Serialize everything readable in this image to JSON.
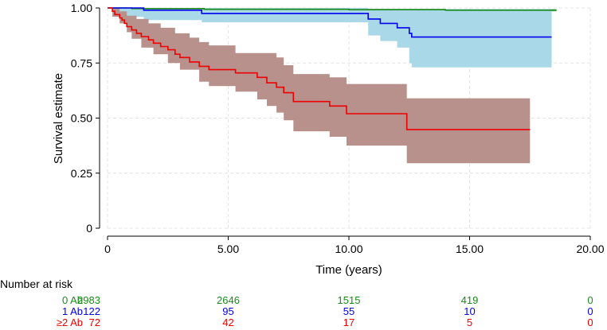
{
  "chart_data": {
    "type": "line",
    "title": "",
    "xlabel": "Time (years)",
    "ylabel": "Survival estimate",
    "xlim": [
      0,
      20
    ],
    "ylim": [
      0,
      1
    ],
    "x_ticks": [
      0,
      5,
      10,
      15,
      20
    ],
    "x_tick_labels": [
      "0",
      "5.00",
      "10.00",
      "15.00",
      "20.00"
    ],
    "y_ticks": [
      0,
      0.25,
      0.5,
      0.75,
      1
    ],
    "y_tick_labels": [
      "0",
      "0.25",
      "0.50",
      "0.75",
      "1.00"
    ],
    "grid": true,
    "series": [
      {
        "name": "0 Ab",
        "color": "#1a8a1a",
        "band_color": "#90c890",
        "steps": [
          [
            0,
            1.0
          ],
          [
            1.0,
            0.997
          ],
          [
            4.0,
            0.994
          ],
          [
            10.0,
            0.992
          ],
          [
            14.0,
            0.99
          ],
          [
            18.6,
            0.99
          ]
        ],
        "lower": [
          [
            0,
            1.0
          ],
          [
            1.0,
            0.995
          ],
          [
            4.0,
            0.991
          ],
          [
            10.0,
            0.988
          ],
          [
            14.0,
            0.985
          ],
          [
            18.6,
            0.985
          ]
        ],
        "upper": [
          [
            0,
            1.0
          ],
          [
            1.0,
            0.999
          ],
          [
            4.0,
            0.997
          ],
          [
            10.0,
            0.996
          ],
          [
            14.0,
            0.995
          ],
          [
            18.6,
            0.995
          ]
        ]
      },
      {
        "name": "1 Ab",
        "color": "#0000ee",
        "band_color": "#a9d8e8",
        "steps": [
          [
            0,
            1.0
          ],
          [
            1.5,
            0.99
          ],
          [
            3.9,
            0.975
          ],
          [
            10.8,
            0.95
          ],
          [
            11.3,
            0.93
          ],
          [
            12.0,
            0.91
          ],
          [
            12.5,
            0.885
          ],
          [
            12.6,
            0.868
          ],
          [
            18.4,
            0.868
          ]
        ],
        "lower": [
          [
            0,
            1.0
          ],
          [
            0.5,
            0.96
          ],
          [
            1.5,
            0.945
          ],
          [
            3.9,
            0.935
          ],
          [
            10.8,
            0.875
          ],
          [
            11.3,
            0.85
          ],
          [
            12.0,
            0.82
          ],
          [
            12.5,
            0.75
          ],
          [
            12.6,
            0.73
          ],
          [
            18.4,
            0.73
          ]
        ],
        "upper": [
          [
            0,
            1.0
          ],
          [
            1.5,
            1.0
          ],
          [
            10.8,
            0.995
          ],
          [
            12.6,
            0.995
          ],
          [
            18.4,
            0.995
          ]
        ]
      },
      {
        "name": "≥2 Ab",
        "color": "#ee0000",
        "band_color": "#b8918c",
        "steps": [
          [
            0,
            1.0
          ],
          [
            0.2,
            0.985
          ],
          [
            0.3,
            0.97
          ],
          [
            0.5,
            0.955
          ],
          [
            0.6,
            0.945
          ],
          [
            0.7,
            0.93
          ],
          [
            0.8,
            0.915
          ],
          [
            1.0,
            0.9
          ],
          [
            1.2,
            0.885
          ],
          [
            1.4,
            0.87
          ],
          [
            1.7,
            0.855
          ],
          [
            1.9,
            0.84
          ],
          [
            2.2,
            0.825
          ],
          [
            2.5,
            0.81
          ],
          [
            2.8,
            0.79
          ],
          [
            3.0,
            0.775
          ],
          [
            3.4,
            0.755
          ],
          [
            3.8,
            0.735
          ],
          [
            4.2,
            0.72
          ],
          [
            5.3,
            0.705
          ],
          [
            6.2,
            0.685
          ],
          [
            6.6,
            0.66
          ],
          [
            7.0,
            0.64
          ],
          [
            7.3,
            0.615
          ],
          [
            7.7,
            0.575
          ],
          [
            9.2,
            0.555
          ],
          [
            9.9,
            0.52
          ],
          [
            12.4,
            0.448
          ],
          [
            17.5,
            0.448
          ]
        ],
        "lower": [
          [
            0,
            1.0
          ],
          [
            0.2,
            0.96
          ],
          [
            0.5,
            0.93
          ],
          [
            0.8,
            0.89
          ],
          [
            1.0,
            0.86
          ],
          [
            1.4,
            0.82
          ],
          [
            1.9,
            0.79
          ],
          [
            2.5,
            0.75
          ],
          [
            3.0,
            0.72
          ],
          [
            3.8,
            0.665
          ],
          [
            4.2,
            0.645
          ],
          [
            5.3,
            0.62
          ],
          [
            6.2,
            0.585
          ],
          [
            6.6,
            0.555
          ],
          [
            7.0,
            0.525
          ],
          [
            7.3,
            0.49
          ],
          [
            7.7,
            0.44
          ],
          [
            9.2,
            0.415
          ],
          [
            9.9,
            0.375
          ],
          [
            12.4,
            0.295
          ],
          [
            17.5,
            0.295
          ]
        ],
        "upper": [
          [
            0,
            1.0
          ],
          [
            0.2,
            1.0
          ],
          [
            0.5,
            0.985
          ],
          [
            0.8,
            0.965
          ],
          [
            1.2,
            0.95
          ],
          [
            1.7,
            0.93
          ],
          [
            2.2,
            0.91
          ],
          [
            2.8,
            0.885
          ],
          [
            3.4,
            0.865
          ],
          [
            3.8,
            0.845
          ],
          [
            4.2,
            0.83
          ],
          [
            5.3,
            0.795
          ],
          [
            6.2,
            0.795
          ],
          [
            7.0,
            0.775
          ],
          [
            7.3,
            0.74
          ],
          [
            7.7,
            0.7
          ],
          [
            9.2,
            0.685
          ],
          [
            9.9,
            0.655
          ],
          [
            12.4,
            0.59
          ],
          [
            17.5,
            0.59
          ]
        ]
      }
    ]
  },
  "risk_table": {
    "title": "Number at risk",
    "rows": [
      {
        "label": "0 Ab",
        "color": "#1a8a1a",
        "values": [
          "2983",
          "2646",
          "1515",
          "419",
          "0"
        ]
      },
      {
        "label": "1 Ab",
        "color": "#0000ee",
        "values": [
          "122",
          "95",
          "55",
          "10",
          "0"
        ]
      },
      {
        "label": "≥2 Ab",
        "color": "#ee0000",
        "values": [
          "72",
          "42",
          "17",
          "5",
          "0"
        ]
      }
    ]
  }
}
